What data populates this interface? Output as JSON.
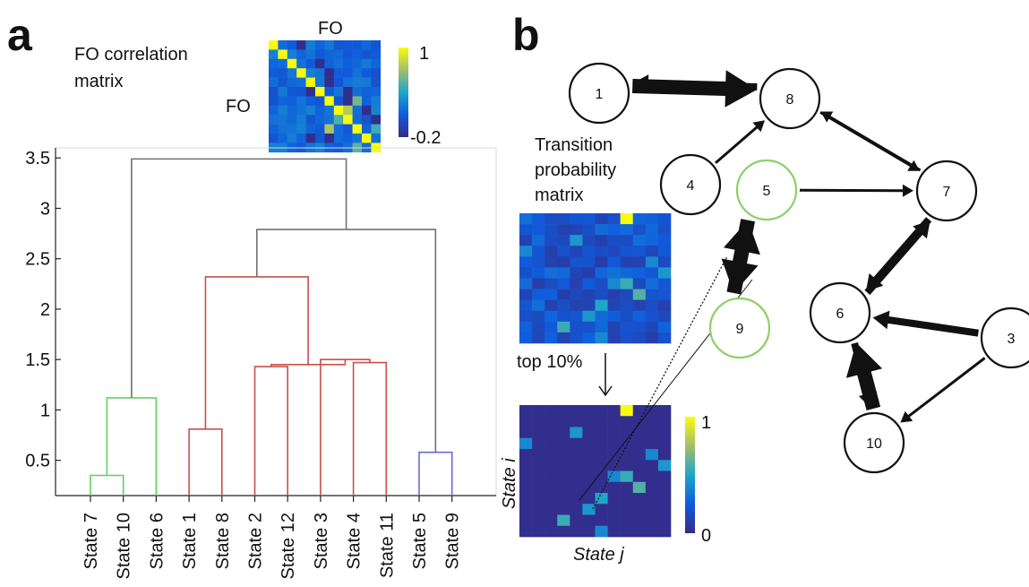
{
  "panels": {
    "a": "a",
    "b": "b"
  },
  "fo_matrix": {
    "title": "FO correlation\nmatrix",
    "row_label": "FO",
    "col_label": "FO",
    "colorbar": {
      "max": "1",
      "min": "-0.2"
    },
    "colors": {
      "low": "#3d3ee0",
      "high": "#f5f530"
    }
  },
  "dendrogram": {
    "ylim": [
      0.15,
      3.6
    ],
    "yticks": [
      "0.5",
      "1",
      "1.5",
      "2",
      "2.5",
      "3",
      "3.5"
    ],
    "leaves": [
      "State 7",
      "State 10",
      "State 6",
      "State 1",
      "State 8",
      "State 2",
      "State 12",
      "State 3",
      "State 4",
      "State 11",
      "State 5",
      "State 9"
    ],
    "links": [
      {
        "left": 0,
        "right": 1,
        "height": 0.35,
        "color": "#5fd35f"
      },
      {
        "left": "g01",
        "right": 2,
        "height": 1.12,
        "color": "#5fd35f"
      },
      {
        "left": 3,
        "right": 4,
        "height": 0.81,
        "color": "#c8504b"
      },
      {
        "left": 5,
        "right": 6,
        "height": 1.43,
        "color": "#c8504b"
      },
      {
        "left": 8,
        "right": 9,
        "height": 1.47,
        "color": "#c8504b"
      },
      {
        "left": 7,
        "right": "g89",
        "height": 1.5,
        "color": "#c8504b"
      },
      {
        "left": "g56",
        "right": "g789",
        "height": 1.45,
        "color": "#c8504b"
      },
      {
        "left": "g34",
        "right": "g56789",
        "height": 2.32,
        "color": "#c8504b"
      },
      {
        "left": 10,
        "right": 11,
        "height": 0.58,
        "color": "#6a6ad8"
      },
      {
        "left": "g3to9",
        "right": "g1011",
        "height": 2.79,
        "color": "#707070"
      },
      {
        "left": "g012",
        "right": "groot2",
        "height": 3.49,
        "color": "#707070"
      }
    ]
  },
  "transition_matrix": {
    "title": "Transition\nprobability\nmatrix",
    "arrow_label": "top 10%",
    "row_label": "State i",
    "col_label": "State j",
    "colorbar": {
      "max": "1",
      "min": "0"
    }
  },
  "graph": {
    "nodes": [
      {
        "id": "1",
        "label": "1",
        "color": "#111111"
      },
      {
        "id": "8",
        "label": "8",
        "color": "#111111"
      },
      {
        "id": "4",
        "label": "4",
        "color": "#111111"
      },
      {
        "id": "5",
        "label": "5",
        "color": "#8fcf6a"
      },
      {
        "id": "7",
        "label": "7",
        "color": "#111111"
      },
      {
        "id": "9",
        "label": "9",
        "color": "#8fcf6a"
      },
      {
        "id": "6",
        "label": "6",
        "color": "#111111"
      },
      {
        "id": "3",
        "label": "3",
        "color": "#111111"
      },
      {
        "id": "10",
        "label": "10",
        "color": "#111111"
      }
    ],
    "edges": [
      {
        "from": "1",
        "to": "8",
        "weight": "heavy"
      },
      {
        "from": "8",
        "to": "1",
        "weight": "medium"
      },
      {
        "from": "4",
        "to": "8",
        "weight": "light"
      },
      {
        "from": "8",
        "to": "7",
        "weight": "light"
      },
      {
        "from": "7",
        "to": "8",
        "weight": "light"
      },
      {
        "from": "5",
        "to": "7",
        "weight": "light"
      },
      {
        "from": "9",
        "to": "5",
        "weight": "heavy"
      },
      {
        "from": "5",
        "to": "9",
        "weight": "heavy"
      },
      {
        "from": "7",
        "to": "6",
        "weight": "medium"
      },
      {
        "from": "6",
        "to": "7",
        "weight": "medium"
      },
      {
        "from": "3",
        "to": "6",
        "weight": "medium"
      },
      {
        "from": "3",
        "to": "10",
        "weight": "light"
      },
      {
        "from": "6",
        "to": "10",
        "weight": "medium"
      },
      {
        "from": "10",
        "to": "6",
        "weight": "heavy"
      }
    ]
  }
}
